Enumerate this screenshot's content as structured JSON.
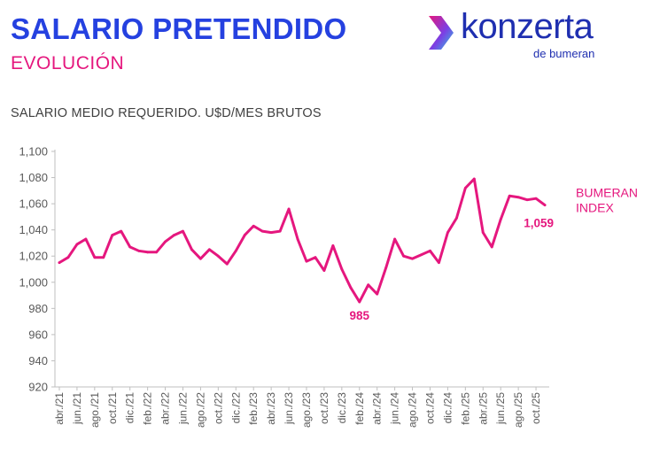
{
  "header": {
    "title": "SALARIO PRETENDIDO",
    "subtitle": "EVOLUCIÓN",
    "logo_text": "konzerta",
    "logo_sub": "de bumeran"
  },
  "colors": {
    "title": "#2541e0",
    "accent": "#e5177e",
    "logo": "#1f2fb0"
  },
  "chart_data": {
    "type": "line",
    "title": "SALARIO MEDIO REQUERIDO. U$D/MES BRUTOS",
    "xlabel": "",
    "ylabel": "",
    "ylim": [
      920,
      1100
    ],
    "y_ticks": [
      920,
      940,
      960,
      980,
      1000,
      1020,
      1040,
      1060,
      1080,
      1100
    ],
    "y_tick_labels": [
      "920",
      "940",
      "960",
      "980",
      "1,000",
      "1,020",
      "1,040",
      "1,060",
      "1,080",
      "1,100"
    ],
    "x_tick_labels": [
      "abr./21",
      "jun./21",
      "ago./21",
      "oct./21",
      "dic./21",
      "feb./22",
      "abr./22",
      "jun./22",
      "ago./22",
      "oct./22",
      "dic./22",
      "feb./23",
      "abr./23",
      "jun./23",
      "ago./23",
      "oct./23",
      "dic./23",
      "feb./24",
      "abr./24",
      "jun./24",
      "ago./24",
      "oct./24",
      "dic./24",
      "feb./25",
      "abr./25",
      "jun./25",
      "ago./25",
      "oct./25"
    ],
    "grid": false,
    "series": [
      {
        "name": "BUMERAN INDEX",
        "color": "#e5177e",
        "values": [
          1015,
          1019,
          1029,
          1033,
          1019,
          1019,
          1036,
          1039,
          1027,
          1024,
          1023,
          1023,
          1031,
          1036,
          1039,
          1025,
          1018,
          1025,
          1020,
          1014,
          1024,
          1036,
          1043,
          1039,
          1038,
          1039,
          1056,
          1033,
          1016,
          1019,
          1009,
          1028,
          1010,
          996,
          985,
          998,
          991,
          1011,
          1033,
          1020,
          1018,
          1021,
          1024,
          1015,
          1038,
          1049,
          1072,
          1079,
          1038,
          1027,
          1048,
          1066,
          1065,
          1063,
          1064,
          1059
        ]
      }
    ],
    "annotations": [
      {
        "text": "985",
        "index": 34,
        "value": 985,
        "position": "below"
      },
      {
        "text": "1,059",
        "index": 55,
        "value": 1059,
        "position": "below-left"
      }
    ],
    "series_label": "BUMERAN INDEX",
    "series_label_lines": [
      "BUMERAN",
      "INDEX"
    ]
  }
}
